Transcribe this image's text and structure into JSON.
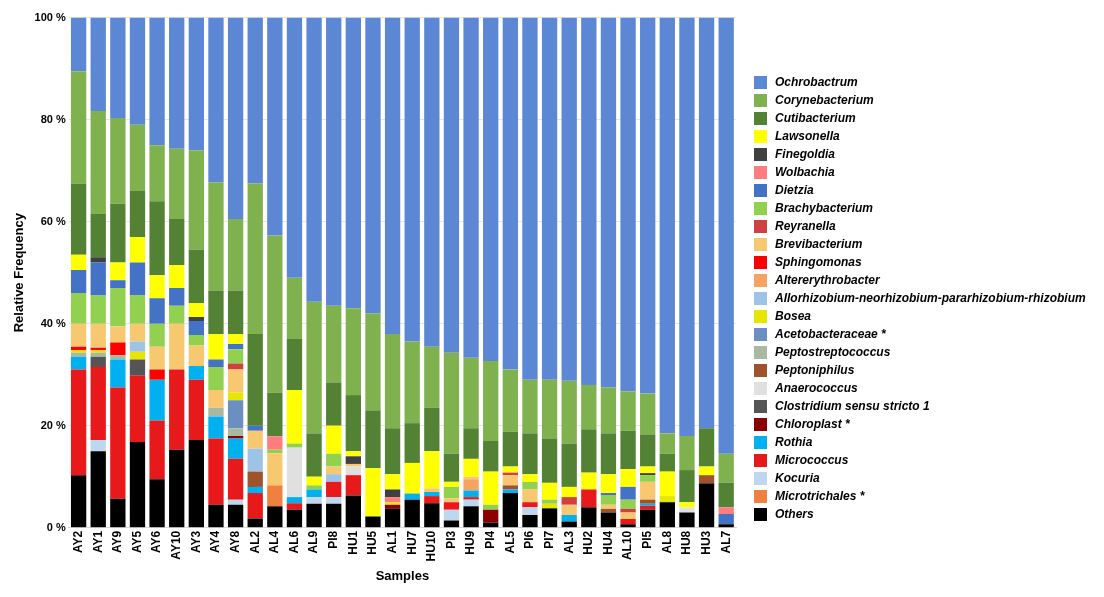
{
  "chart_data": {
    "type": "bar",
    "stacked": true,
    "xlabel": "Samples",
    "ylabel": "Relative Frequency",
    "categories": [
      "AY2",
      "AY1",
      "AY9",
      "AY5",
      "AY6",
      "AY10",
      "AY3",
      "AY4",
      "AY8",
      "AL2",
      "AL4",
      "AL6",
      "AL9",
      "PI8",
      "HU1",
      "HU5",
      "AL1",
      "HU7",
      "HU10",
      "PI3",
      "HU9",
      "PI4",
      "AL5",
      "PI6",
      "PI7",
      "AL3",
      "HU2",
      "HU4",
      "AL10",
      "PI5",
      "AL8",
      "HU8",
      "HU3",
      "AL7"
    ],
    "ylim": [
      0,
      100
    ],
    "yticks": [
      {
        "value": 0,
        "label": "0 %"
      },
      {
        "value": 20,
        "label": "20 %"
      },
      {
        "value": 40,
        "label": "40 %"
      },
      {
        "value": 60,
        "label": "60 %"
      },
      {
        "value": 80,
        "label": "80 %"
      },
      {
        "value": 100,
        "label": "100 %"
      }
    ],
    "grid": "y",
    "legend": "right",
    "series": [
      {
        "name": "Others",
        "color": "#000000",
        "values": [
          10.3,
          15,
          5.7,
          16.8,
          9.5,
          15.3,
          17.2,
          4.5,
          4.5,
          1.8,
          4.2,
          3.5,
          4.7,
          4.7,
          6.3,
          2.2,
          3.7,
          5.5,
          4.8,
          1.4,
          4.2,
          1,
          6.8,
          2.5,
          3.8,
          1.2,
          4,
          3,
          0.7,
          3.5,
          5,
          3,
          8.7,
          0.7
        ]
      },
      {
        "name": "Microtrichales *",
        "color": "#f08040",
        "values": [
          0,
          0,
          0,
          0,
          0,
          0,
          0,
          0,
          0,
          0,
          4.1,
          0,
          0,
          0,
          0,
          0,
          0,
          0,
          0,
          0,
          0,
          0,
          0,
          0,
          0,
          0,
          0,
          0,
          0,
          0,
          0,
          0,
          0,
          0
        ]
      },
      {
        "name": "Kocuria",
        "color": "#bdd7ee",
        "values": [
          0,
          2.2,
          0,
          0,
          0,
          0,
          0,
          0,
          1,
          0,
          0,
          0,
          1.3,
          1.3,
          0,
          0,
          0,
          0,
          0,
          2.1,
          1.3,
          0,
          0,
          1.5,
          0,
          0,
          0,
          0,
          0,
          0,
          0,
          0,
          0,
          0
        ]
      },
      {
        "name": "Micrococcus",
        "color": "#e8191b",
        "values": [
          20.7,
          14.3,
          21.8,
          13,
          11.5,
          15.7,
          11.8,
          13,
          8,
          5,
          0,
          1.3,
          0,
          3,
          4,
          0,
          0,
          0,
          1.4,
          1.5,
          0.5,
          0,
          0,
          1,
          0,
          0,
          3.5,
          0,
          1,
          0.8,
          0,
          0,
          0,
          0
        ]
      },
      {
        "name": "Rothia",
        "color": "#00b0f0",
        "values": [
          2.5,
          0,
          5.5,
          0,
          8,
          0,
          2.7,
          4.3,
          4,
          1.2,
          0,
          1.2,
          1.5,
          0,
          0,
          0,
          0,
          1.2,
          0.8,
          0,
          1.3,
          0,
          0.7,
          0,
          0,
          1.3,
          0,
          0,
          0,
          0.4,
          0,
          0,
          0,
          0
        ]
      },
      {
        "name": "Chloroplast *",
        "color": "#8b0000",
        "values": [
          0,
          0,
          0,
          0,
          0,
          0,
          0,
          0,
          0.5,
          0,
          0,
          0,
          0,
          0,
          0,
          0,
          0.8,
          0,
          0,
          0,
          0,
          2.5,
          0,
          0,
          0,
          0,
          0,
          0,
          0,
          0,
          0,
          0,
          0,
          0
        ]
      },
      {
        "name": "Clostridium sensu stricto 1",
        "color": "#555555",
        "values": [
          0,
          2,
          0,
          3.2,
          0,
          0,
          0,
          0,
          0,
          0,
          0,
          0,
          0,
          0,
          0,
          0,
          0,
          0,
          0,
          0,
          0,
          0,
          0,
          0,
          0,
          0,
          0,
          0,
          0,
          0,
          0,
          0,
          0,
          0
        ]
      },
      {
        "name": "Anaerococcus",
        "color": "#e0e0e0",
        "values": [
          0,
          0,
          0,
          0,
          0,
          0,
          0,
          0,
          0,
          0,
          0,
          9.7,
          0,
          0,
          1.7,
          0,
          0,
          0,
          0,
          0,
          0,
          0,
          0,
          0,
          0,
          0,
          0,
          0,
          0,
          0,
          0,
          1,
          0,
          0
        ]
      },
      {
        "name": "Peptoniphilus",
        "color": "#a0522d",
        "values": [
          0,
          0,
          0,
          0,
          0,
          0,
          0,
          0,
          0,
          3,
          0,
          0,
          0,
          0,
          0,
          0,
          0,
          0,
          0,
          0,
          0,
          0,
          0.8,
          0,
          0,
          0,
          0,
          0.7,
          0,
          0.8,
          0,
          0,
          1.6,
          0
        ]
      },
      {
        "name": "Peptostreptococcus",
        "color": "#a9b8a0",
        "values": [
          0.8,
          0.8,
          0.8,
          0,
          0,
          0,
          0,
          1.7,
          1.5,
          0,
          0,
          0,
          0,
          0,
          0,
          0,
          0,
          0,
          0,
          0,
          0,
          0,
          0,
          0,
          0,
          0,
          0,
          0,
          0,
          0,
          0,
          0,
          0,
          0
        ]
      },
      {
        "name": "Acetobacteraceae *",
        "color": "#6a8fc0",
        "values": [
          0,
          0,
          0,
          0,
          0,
          0,
          0,
          0,
          5.5,
          0,
          0,
          0,
          0,
          0,
          0,
          0,
          0,
          0,
          0,
          0,
          0,
          0,
          0,
          0,
          0,
          0,
          0,
          0,
          0,
          0,
          0,
          0,
          0,
          0
        ]
      },
      {
        "name": "Bosea",
        "color": "#e6e600",
        "values": [
          0.5,
          0.5,
          0,
          1.5,
          0,
          0,
          0,
          0,
          1.5,
          0,
          0,
          0,
          0,
          0,
          0,
          0,
          0.5,
          0,
          0,
          0,
          0,
          0,
          0,
          0,
          0.9,
          0,
          0,
          0,
          0,
          0,
          1.2,
          0,
          0,
          0
        ]
      },
      {
        "name": "Allorhizobium-neorhizobium-pararhizobium-rhizobium",
        "color": "#9dc3e6",
        "values": [
          0,
          0,
          0,
          2,
          0,
          0,
          0,
          0,
          0,
          4.5,
          0,
          0,
          0,
          1.5,
          0,
          0,
          0,
          0,
          0,
          0,
          0,
          0,
          0,
          0,
          0,
          0,
          0,
          0,
          0,
          0,
          0,
          0,
          0,
          0
        ]
      },
      {
        "name": "Altererythrobacter",
        "color": "#f4a460",
        "values": [
          0,
          0,
          0,
          0,
          0,
          0,
          0,
          0,
          0,
          0,
          0,
          0,
          0,
          0,
          0,
          0,
          0,
          0,
          0,
          0,
          2.2,
          0,
          0,
          0,
          0,
          0,
          0,
          0,
          0,
          0,
          0,
          0,
          0,
          0
        ]
      },
      {
        "name": "Sphingomonas",
        "color": "#ff0000",
        "values": [
          0.7,
          0.5,
          2.5,
          0,
          2,
          0,
          0,
          0,
          0,
          0,
          0,
          0,
          0,
          0,
          0,
          0,
          0,
          0,
          0,
          0,
          0,
          0,
          0,
          0,
          0,
          0,
          0,
          0,
          0,
          0,
          0,
          0,
          0,
          0
        ]
      },
      {
        "name": "Brevibacterium",
        "color": "#f8c870",
        "values": [
          4.5,
          4.7,
          3.2,
          3.5,
          4.5,
          9,
          4,
          3.5,
          4.5,
          3.5,
          6.3,
          0,
          0,
          1.5,
          0.5,
          0,
          0,
          0,
          0.7,
          0.8,
          0.5,
          0,
          2,
          2.5,
          0,
          2,
          0,
          0.8,
          1.3,
          3.5,
          0,
          0,
          0,
          0
        ]
      },
      {
        "name": "Reyranella",
        "color": "#d04040",
        "values": [
          0,
          0,
          0,
          0,
          0,
          0,
          0,
          0,
          1.2,
          0,
          0,
          0,
          0,
          0,
          0,
          0,
          0,
          0,
          0,
          0,
          0,
          0,
          0.5,
          0,
          0,
          1.5,
          0,
          0,
          0.7,
          0,
          0,
          0,
          0,
          0
        ]
      },
      {
        "name": "Brachybacterium",
        "color": "#92d050",
        "values": [
          6,
          5.5,
          7.5,
          5.5,
          4.5,
          3.5,
          2.1,
          4.5,
          2.8,
          0,
          0.7,
          0.8,
          0.8,
          2.5,
          0,
          0,
          0,
          0,
          0,
          2.2,
          0,
          1,
          0,
          1.5,
          0.8,
          0,
          0,
          1.8,
          1.8,
          1.3,
          0,
          0,
          0,
          0
        ]
      },
      {
        "name": "Dietzia",
        "color": "#4472c4",
        "values": [
          4.5,
          6.5,
          1.5,
          6.5,
          5,
          3.5,
          2.7,
          1.5,
          1,
          1,
          0,
          0,
          0,
          0,
          0,
          0,
          0,
          0,
          0,
          0,
          0,
          0,
          0,
          0,
          0,
          0,
          0,
          0.5,
          2.5,
          0,
          0,
          0,
          0,
          2
        ]
      },
      {
        "name": "Wolbachia",
        "color": "#ff7c80",
        "values": [
          0,
          0,
          0,
          0,
          0,
          0,
          0,
          0,
          0,
          0,
          2.6,
          0,
          0,
          0,
          0,
          0,
          1,
          0,
          0,
          0,
          0,
          0,
          0,
          0,
          0,
          0,
          0,
          0,
          0,
          0,
          0,
          0,
          0,
          1.3
        ]
      },
      {
        "name": "Finegoldia",
        "color": "#404040",
        "values": [
          0,
          1,
          0,
          0,
          0,
          0,
          0.8,
          0,
          0,
          0,
          0,
          0,
          0,
          0,
          1.5,
          0,
          1.5,
          0,
          0,
          0,
          0,
          0,
          0,
          0,
          0,
          0,
          0,
          0,
          0,
          0.4,
          0,
          0,
          0,
          0
        ]
      },
      {
        "name": "Lawsonella",
        "color": "#ffff00",
        "values": [
          3,
          0,
          3.5,
          5,
          4.5,
          4.5,
          2.7,
          5,
          2,
          0,
          0,
          10.5,
          1.7,
          5.5,
          1,
          9.5,
          3,
          6,
          7.3,
          1,
          3.5,
          6.5,
          1.2,
          1.5,
          3.3,
          2,
          3.3,
          3.7,
          3.5,
          1.3,
          4.8,
          1,
          1.7,
          0
        ]
      },
      {
        "name": "Cutibacterium",
        "color": "#548235",
        "values": [
          14,
          8.5,
          11.5,
          9,
          14.5,
          9,
          10.5,
          8.5,
          8.5,
          18,
          8.6,
          10,
          8.5,
          8.5,
          11,
          11.3,
          9,
          7.8,
          8.5,
          5.5,
          6,
          6,
          6.8,
          8,
          8.7,
          8.5,
          8.5,
          8,
          7.5,
          6.3,
          3.5,
          6.3,
          7.5,
          4.8
        ]
      },
      {
        "name": "Corynebacterium",
        "color": "#7fb24e",
        "values": [
          22,
          20.2,
          16.8,
          13,
          11,
          13.8,
          19.5,
          21.2,
          14,
          29.5,
          30.8,
          12,
          25.8,
          15,
          17,
          19,
          18.5,
          16,
          12,
          19.8,
          13.8,
          15.7,
          12.2,
          10.5,
          11.5,
          12.3,
          8.7,
          9,
          7.7,
          8,
          4,
          6.7,
          0,
          5.7
        ]
      },
      {
        "name": "Ochrobactrum",
        "color": "#5b87d4",
        "values": [
          10.5,
          18.3,
          19.7,
          21,
          25,
          25.7,
          26,
          32.3,
          39.5,
          32.5,
          42.7,
          51,
          55.7,
          56.5,
          57,
          58,
          62,
          63.5,
          64.5,
          65.7,
          66.7,
          67.3,
          69,
          71,
          71,
          71.2,
          72,
          72.5,
          73.3,
          73.7,
          81.5,
          82,
          80.5,
          85.5
        ]
      }
    ]
  }
}
